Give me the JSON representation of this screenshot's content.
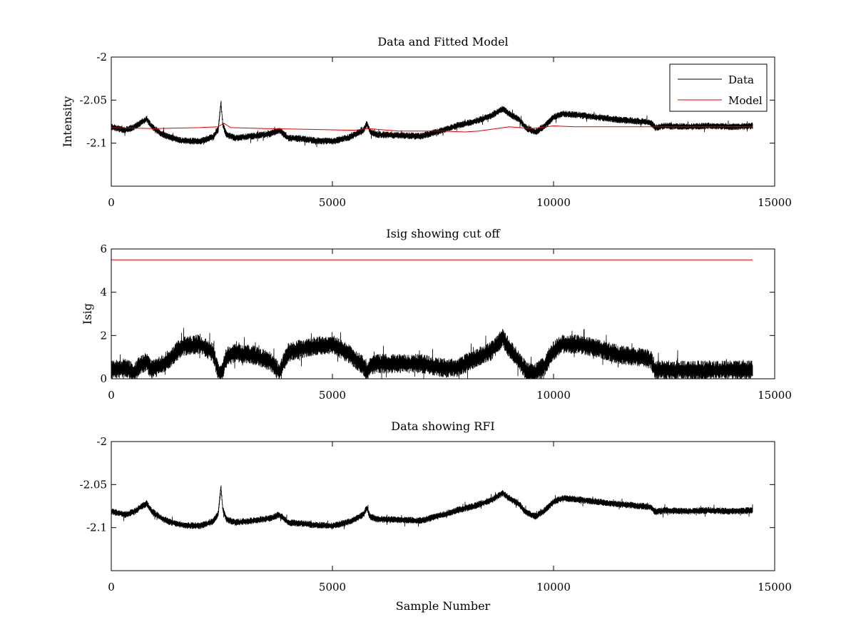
{
  "chart_data": [
    {
      "type": "line",
      "title": "Data and Fitted Model",
      "xlabel": "",
      "ylabel": "Intensity",
      "xlim": [
        0,
        15000
      ],
      "ylim": [
        -2.15,
        -2.0
      ],
      "x_ticks": [
        0,
        5000,
        10000,
        15000
      ],
      "x_tick_labels": [
        "0",
        "5000",
        "10000",
        "15000"
      ],
      "y_ticks": [
        -2.0,
        -2.05,
        -2.1
      ],
      "y_tick_labels": [
        "-2",
        "-2.05",
        "-2.1"
      ],
      "grid": false,
      "legend": {
        "placement": "top-right",
        "entries": [
          "Data",
          "Model"
        ]
      },
      "series": [
        {
          "name": "Data",
          "color": "#000000",
          "style": "noisy-band",
          "noise_amplitude": 0.004,
          "x": [
            0,
            300,
            500,
            700,
            800,
            900,
            1100,
            1300,
            1600,
            2000,
            2300,
            2420,
            2480,
            2520,
            2600,
            2800,
            3200,
            3600,
            3800,
            4000,
            4300,
            4600,
            5000,
            5400,
            5700,
            5780,
            5850,
            6000,
            6500,
            7000,
            7500,
            7800,
            8200,
            8600,
            8850,
            9000,
            9200,
            9400,
            9600,
            9800,
            10000,
            10200,
            10500,
            11000,
            11500,
            12000,
            12200,
            12300,
            12500,
            13000,
            13500,
            14000,
            14500
          ],
          "values": [
            -2.081,
            -2.085,
            -2.082,
            -2.075,
            -2.072,
            -2.08,
            -2.088,
            -2.093,
            -2.097,
            -2.098,
            -2.093,
            -2.084,
            -2.052,
            -2.078,
            -2.09,
            -2.094,
            -2.092,
            -2.089,
            -2.085,
            -2.094,
            -2.095,
            -2.097,
            -2.098,
            -2.093,
            -2.085,
            -2.077,
            -2.087,
            -2.09,
            -2.091,
            -2.092,
            -2.085,
            -2.08,
            -2.075,
            -2.068,
            -2.06,
            -2.066,
            -2.072,
            -2.083,
            -2.087,
            -2.08,
            -2.07,
            -2.066,
            -2.067,
            -2.07,
            -2.073,
            -2.075,
            -2.076,
            -2.082,
            -2.08,
            -2.081,
            -2.08,
            -2.081,
            -2.08
          ]
        },
        {
          "name": "Model",
          "color": "#e00000",
          "style": "line",
          "x": [
            0,
            1000,
            2000,
            2400,
            2550,
            2700,
            3500,
            4500,
            5500,
            5800,
            6500,
            7500,
            8000,
            8300,
            9000,
            9500,
            10000,
            10500,
            12000,
            14500
          ],
          "values": [
            -2.082,
            -2.083,
            -2.082,
            -2.081,
            -2.077,
            -2.082,
            -2.083,
            -2.084,
            -2.085,
            -2.083,
            -2.086,
            -2.086,
            -2.087,
            -2.086,
            -2.081,
            -2.083,
            -2.08,
            -2.081,
            -2.081,
            -2.081
          ]
        }
      ]
    },
    {
      "type": "line",
      "title": "Isig showing cut off",
      "xlabel": "",
      "ylabel": "Isig",
      "xlim": [
        0,
        15000
      ],
      "ylim": [
        0,
        6
      ],
      "x_ticks": [
        0,
        5000,
        10000,
        15000
      ],
      "x_tick_labels": [
        "0",
        "5000",
        "10000",
        "15000"
      ],
      "y_ticks": [
        0,
        2,
        4,
        6
      ],
      "y_tick_labels": [
        "0",
        "2",
        "4",
        "6"
      ],
      "grid": false,
      "series": [
        {
          "color": "#000000",
          "style": "noisy-band",
          "noise_amplitude": 0.45,
          "clip_min": 0,
          "x": [
            0,
            300,
            500,
            700,
            800,
            900,
            1100,
            1300,
            1600,
            2000,
            2300,
            2420,
            2480,
            2520,
            2600,
            2800,
            3200,
            3600,
            3800,
            4000,
            4300,
            4600,
            5000,
            5400,
            5700,
            5780,
            5850,
            6000,
            6500,
            7000,
            7500,
            7800,
            8200,
            8600,
            8850,
            9000,
            9200,
            9400,
            9600,
            9800,
            10000,
            10200,
            10500,
            11000,
            11500,
            12000,
            12200,
            12300,
            12500,
            13000,
            13500,
            14000,
            14500
          ],
          "values": [
            0.4,
            0.5,
            0.3,
            0.7,
            0.8,
            0.4,
            0.6,
            0.9,
            1.5,
            1.6,
            1.2,
            0.3,
            0.2,
            0.4,
            1.0,
            1.2,
            1.1,
            0.8,
            0.3,
            1.2,
            1.4,
            1.5,
            1.6,
            1.1,
            0.6,
            0.3,
            0.6,
            0.7,
            0.7,
            0.7,
            0.5,
            0.5,
            0.9,
            1.3,
            1.9,
            1.4,
            0.9,
            0.3,
            0.3,
            0.6,
            1.3,
            1.6,
            1.6,
            1.4,
            1.1,
            1.0,
            0.9,
            0.4,
            0.4,
            0.4,
            0.4,
            0.4,
            0.4
          ]
        },
        {
          "color": "#e00000",
          "style": "line",
          "x": [
            0,
            14500
          ],
          "values": [
            5.5,
            5.5
          ]
        }
      ]
    },
    {
      "type": "line",
      "title": "Data showing RFI",
      "xlabel": "Sample Number",
      "ylabel": "",
      "xlim": [
        0,
        15000
      ],
      "ylim": [
        -2.15,
        -2.0
      ],
      "x_ticks": [
        0,
        5000,
        10000,
        15000
      ],
      "x_tick_labels": [
        "0",
        "5000",
        "10000",
        "15000"
      ],
      "y_ticks": [
        -2.0,
        -2.05,
        -2.1
      ],
      "y_tick_labels": [
        "-2",
        "-2.05",
        "-2.1"
      ],
      "grid": false,
      "series": [
        {
          "color": "#000000",
          "style": "noisy-band",
          "noise_amplitude": 0.004,
          "x": [
            0,
            300,
            500,
            700,
            800,
            900,
            1100,
            1300,
            1600,
            2000,
            2300,
            2420,
            2480,
            2520,
            2600,
            2800,
            3200,
            3600,
            3800,
            4000,
            4300,
            4600,
            5000,
            5400,
            5700,
            5780,
            5850,
            6000,
            6500,
            7000,
            7500,
            7800,
            8200,
            8600,
            8850,
            9000,
            9200,
            9400,
            9600,
            9800,
            10000,
            10200,
            10500,
            11000,
            11500,
            12000,
            12200,
            12300,
            12500,
            13000,
            13500,
            14000,
            14500
          ],
          "values": [
            -2.081,
            -2.085,
            -2.082,
            -2.075,
            -2.072,
            -2.08,
            -2.088,
            -2.093,
            -2.097,
            -2.098,
            -2.093,
            -2.084,
            -2.052,
            -2.078,
            -2.09,
            -2.094,
            -2.092,
            -2.089,
            -2.085,
            -2.094,
            -2.095,
            -2.097,
            -2.098,
            -2.093,
            -2.085,
            -2.077,
            -2.087,
            -2.09,
            -2.091,
            -2.092,
            -2.085,
            -2.08,
            -2.075,
            -2.068,
            -2.06,
            -2.066,
            -2.072,
            -2.083,
            -2.087,
            -2.08,
            -2.07,
            -2.066,
            -2.067,
            -2.07,
            -2.073,
            -2.075,
            -2.076,
            -2.082,
            -2.08,
            -2.081,
            -2.08,
            -2.081,
            -2.08
          ]
        }
      ]
    }
  ]
}
